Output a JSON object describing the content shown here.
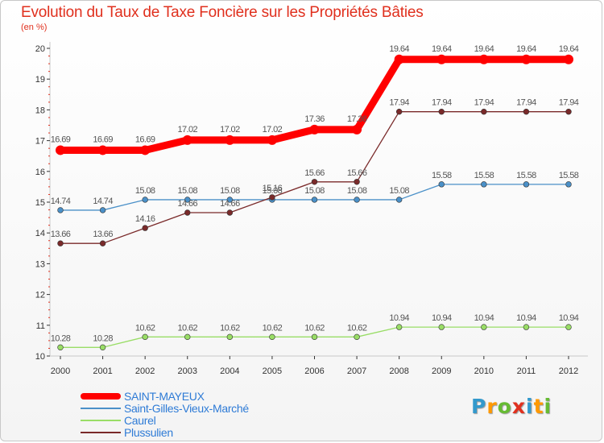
{
  "title": "Evolution du Taux de Taxe Foncière sur les Propriétés Bâties",
  "unit_label": "(en %)",
  "logo": {
    "text": "Proxiti",
    "letters": [
      {
        "ch": "P",
        "color": "#3399cc"
      },
      {
        "ch": "r",
        "color": "#ff9900"
      },
      {
        "ch": "o",
        "color": "#66bb33"
      },
      {
        "ch": "x",
        "color": "#e0301e"
      },
      {
        "ch": "i",
        "color": "#3399cc"
      },
      {
        "ch": "t",
        "color": "#ff9900"
      },
      {
        "ch": "i",
        "color": "#66bb33"
      }
    ]
  },
  "colors": {
    "axis": "#c8c8c8",
    "tick": "#333333",
    "minor_tick": "#e0301e",
    "legend_text": "#2e7bd6"
  },
  "chart_data": {
    "type": "line",
    "title": "Evolution du Taux de Taxe Foncière sur les Propriétés Bâties",
    "ylabel": "(en %)",
    "xlabel": "",
    "ylim": [
      10,
      20
    ],
    "yticks": [
      "10",
      "11",
      "12",
      "13",
      "14",
      "15",
      "16",
      "17",
      "18",
      "19",
      "20"
    ],
    "categories": [
      "2000",
      "2001",
      "2002",
      "2003",
      "2004",
      "2005",
      "2006",
      "2007",
      "2008",
      "2009",
      "2010",
      "2011",
      "2012"
    ],
    "grid": false,
    "legend_position": "bottom-left",
    "series": [
      {
        "name": "SAINT-MAYEUX",
        "color": "#ff0000",
        "thick": true,
        "values": [
          16.69,
          16.69,
          16.69,
          17.02,
          17.02,
          17.02,
          17.36,
          17.36,
          19.64,
          19.64,
          19.64,
          19.64,
          19.64
        ],
        "labels": [
          "16.69",
          "16.69",
          "16.69",
          "17.02",
          "17.02",
          "17.02",
          "17.36",
          "17.36",
          "19.64",
          "19.64",
          "19.64",
          "19.64",
          "19.64"
        ]
      },
      {
        "name": "Saint-Gilles-Vieux-Marché",
        "color": "#4a90c8",
        "thick": false,
        "values": [
          14.74,
          14.74,
          15.08,
          15.08,
          15.08,
          15.08,
          15.08,
          15.08,
          15.08,
          15.58,
          15.58,
          15.58,
          15.58
        ],
        "labels": [
          "14.74",
          "14.74",
          "15.08",
          "15.08",
          "15.08",
          "15.08",
          "15.08",
          "15.08",
          "15.08",
          "15.58",
          "15.58",
          "15.58",
          "15.58"
        ]
      },
      {
        "name": "Caurel",
        "color": "#99dd66",
        "thick": false,
        "values": [
          10.28,
          10.28,
          10.62,
          10.62,
          10.62,
          10.62,
          10.62,
          10.62,
          10.94,
          10.94,
          10.94,
          10.94,
          10.94
        ],
        "labels": [
          "10.28",
          "10.28",
          "10.62",
          "10.62",
          "10.62",
          "10.62",
          "10.62",
          "10.62",
          "10.94",
          "10.94",
          "10.94",
          "10.94",
          "10.94"
        ]
      },
      {
        "name": "Plussulien",
        "color": "#7a2a2a",
        "thick": false,
        "values": [
          13.66,
          13.66,
          14.16,
          14.66,
          14.66,
          15.16,
          15.66,
          15.66,
          17.94,
          17.94,
          17.94,
          17.94,
          17.94
        ],
        "labels": [
          "13.66",
          "13.66",
          "14.16",
          "14.66",
          "14.66",
          "15.16",
          "15.66",
          "15.66",
          "17.94",
          "17.94",
          "17.94",
          "17.94",
          "17.94"
        ]
      }
    ]
  }
}
